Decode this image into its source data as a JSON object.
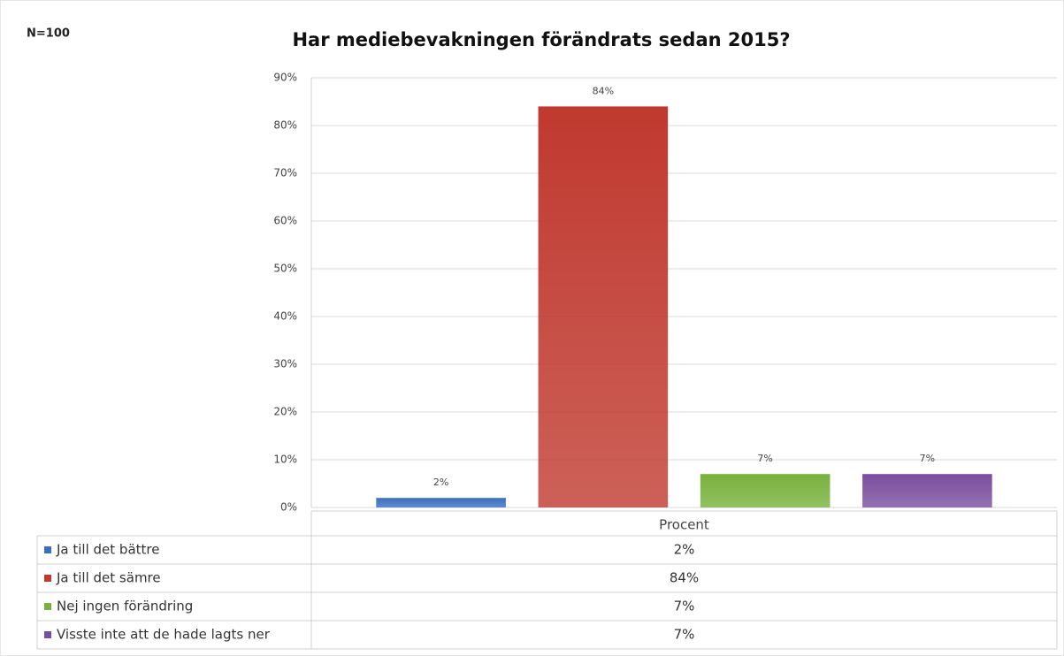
{
  "chart_data": {
    "type": "bar",
    "title": "Har mediebevakningen förändrats sedan 2015?",
    "annotation": "N=100",
    "categories": [
      "Procent"
    ],
    "series": [
      {
        "name": "Ja till det bättre",
        "color": "#3b6fc2",
        "values": [
          2
        ],
        "value_labels": [
          "2%"
        ]
      },
      {
        "name": "Ja till det sämre",
        "color": "#c0392f",
        "values": [
          84
        ],
        "value_labels": [
          "84%"
        ]
      },
      {
        "name": "Nej ingen förändring",
        "color": "#78b13c",
        "values": [
          7
        ],
        "value_labels": [
          "7%"
        ]
      },
      {
        "name": "Visste inte att de hade lagts ner",
        "color": "#7a4d9e",
        "values": [
          7
        ],
        "value_labels": [
          "7%"
        ]
      }
    ],
    "ylim": [
      0,
      90
    ],
    "yticks": [
      {
        "value": 0,
        "label": "0%"
      },
      {
        "value": 10,
        "label": "10%"
      },
      {
        "value": 20,
        "label": "20%"
      },
      {
        "value": 30,
        "label": "30%"
      },
      {
        "value": 40,
        "label": "40%"
      },
      {
        "value": 50,
        "label": "50%"
      },
      {
        "value": 60,
        "label": "60%"
      },
      {
        "value": 70,
        "label": "70%"
      },
      {
        "value": 80,
        "label": "80%"
      },
      {
        "value": 90,
        "label": "90%"
      }
    ],
    "grid": true
  }
}
